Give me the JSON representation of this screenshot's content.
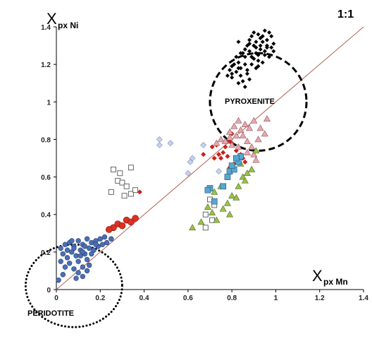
{
  "chart_data": {
    "type": "scatter",
    "x_label_main": "X",
    "x_label_sub": "px Mn",
    "y_label_main": "X",
    "y_label_sub": "px Ni",
    "xlim": [
      0,
      1.4
    ],
    "ylim": [
      0,
      1.4
    ],
    "x_ticks": [
      "0",
      "0.2",
      "0.4",
      "0.6",
      "0.8",
      "1",
      "1.2",
      "1.4"
    ],
    "y_ticks": [
      "0",
      "0.2",
      "0.4",
      "0.6",
      "0.8",
      "1",
      "1.2",
      "1.4"
    ],
    "reference_line_label": "1:1",
    "reference_line": [
      [
        0,
        0
      ],
      [
        1.4,
        1.4
      ]
    ],
    "grid": false,
    "annotations": [
      {
        "text": "PYROXENITE",
        "ellipse": {
          "cx": 0.92,
          "cy": 1.0,
          "rx": 0.22,
          "ry": 0.26,
          "style": "dashed"
        },
        "label_at": [
          0.9,
          1.0
        ]
      },
      {
        "text": "PERIDOTITE",
        "ellipse": {
          "cx": 0.08,
          "cy": 0.02,
          "rx": 0.22,
          "ry": 0.22,
          "style": "dotted"
        },
        "label_at": [
          0.12,
          -0.11
        ]
      }
    ],
    "colors": {
      "pyroxenite": "#000000",
      "peridotite_fill": "#4a6fb5",
      "red_circle": "#e03020",
      "red_diamond": "#c8201e",
      "light_blue_diamond": "#c6d3ee",
      "open_square_edge": "#555555",
      "pink_triangle": "#e9a7ad",
      "green_triangle": "#9bc04a",
      "cyan_square": "#56a8cf",
      "ref_line": "#b06050"
    },
    "series": [
      {
        "marker": "small-black-diamond",
        "points": [
          [
            0.83,
            1.32
          ],
          [
            0.86,
            1.28
          ],
          [
            0.88,
            1.33
          ],
          [
            0.9,
            1.3
          ],
          [
            0.92,
            1.36
          ],
          [
            0.94,
            1.32
          ],
          [
            0.96,
            1.29
          ],
          [
            0.98,
            1.35
          ],
          [
            0.99,
            1.31
          ],
          [
            0.95,
            1.25
          ],
          [
            0.92,
            1.22
          ],
          [
            0.89,
            1.2
          ],
          [
            0.86,
            1.24
          ],
          [
            0.84,
            1.18
          ],
          [
            0.82,
            1.16
          ],
          [
            0.8,
            1.13
          ],
          [
            0.78,
            1.14
          ],
          [
            0.8,
            1.19
          ],
          [
            0.83,
            1.21
          ],
          [
            0.87,
            1.15
          ],
          [
            0.85,
            1.11
          ],
          [
            0.83,
            1.1
          ],
          [
            0.88,
            1.27
          ],
          [
            0.91,
            1.26
          ],
          [
            0.93,
            1.28
          ],
          [
            0.97,
            1.37
          ],
          [
            0.95,
            1.38
          ],
          [
            0.93,
            1.34
          ],
          [
            0.9,
            1.37
          ],
          [
            0.96,
            1.33
          ],
          [
            0.99,
            1.27
          ],
          [
            0.97,
            1.24
          ],
          [
            0.94,
            1.21
          ],
          [
            0.91,
            1.18
          ],
          [
            0.88,
            1.12
          ],
          [
            0.86,
            1.08
          ],
          [
            0.82,
            1.24
          ],
          [
            0.84,
            1.26
          ],
          [
            0.87,
            1.3
          ],
          [
            0.89,
            1.35
          ],
          [
            0.91,
            1.32
          ],
          [
            0.93,
            1.3
          ],
          [
            0.95,
            1.27
          ],
          [
            0.98,
            1.29
          ],
          [
            0.92,
            1.19
          ],
          [
            0.9,
            1.23
          ],
          [
            0.86,
            1.2
          ],
          [
            0.81,
            1.2
          ],
          [
            0.79,
            1.17
          ],
          [
            0.84,
            1.14
          ],
          [
            0.87,
            1.17
          ],
          [
            0.89,
            1.24
          ],
          [
            0.92,
            1.25
          ],
          [
            0.94,
            1.35
          ],
          [
            0.96,
            1.3
          ],
          [
            0.91,
            1.29
          ],
          [
            0.88,
            1.31
          ],
          [
            0.85,
            1.26
          ],
          [
            0.83,
            1.18
          ],
          [
            0.8,
            1.15
          ]
        ]
      },
      {
        "marker": "blue-circle",
        "points": [
          [
            0.02,
            0.22
          ],
          [
            0.04,
            0.24
          ],
          [
            0.06,
            0.25
          ],
          [
            0.08,
            0.23
          ],
          [
            0.1,
            0.26
          ],
          [
            0.12,
            0.24
          ],
          [
            0.14,
            0.27
          ],
          [
            0.16,
            0.25
          ],
          [
            0.18,
            0.26
          ],
          [
            0.2,
            0.27
          ],
          [
            0.22,
            0.28
          ],
          [
            0.15,
            0.22
          ],
          [
            0.11,
            0.21
          ],
          [
            0.07,
            0.2
          ],
          [
            0.03,
            0.19
          ],
          [
            0.05,
            0.17
          ],
          [
            0.09,
            0.18
          ],
          [
            0.13,
            0.19
          ],
          [
            0.17,
            0.21
          ],
          [
            0.19,
            0.23
          ],
          [
            0.23,
            0.25
          ],
          [
            0.25,
            0.27
          ],
          [
            0.08,
            0.22
          ],
          [
            0.12,
            0.2
          ],
          [
            0.14,
            0.16
          ],
          [
            0.1,
            0.15
          ],
          [
            0.06,
            0.14
          ],
          [
            0.04,
            0.12
          ],
          [
            0.08,
            0.11
          ],
          [
            0.12,
            0.12
          ],
          [
            0.1,
            0.09
          ],
          [
            0.14,
            0.1
          ],
          [
            0.09,
            0.06
          ],
          [
            0.12,
            0.07
          ],
          [
            0.15,
            0.13
          ],
          [
            0.02,
            0.15
          ],
          [
            0.05,
            0.21
          ],
          [
            0.13,
            0.23
          ],
          [
            0.16,
            0.19
          ],
          [
            0.18,
            0.24
          ],
          [
            0.21,
            0.24
          ],
          [
            0.07,
            0.26
          ],
          [
            0.03,
            0.08
          ],
          [
            0.11,
            0.18
          ],
          [
            0.01,
            0.05
          ]
        ]
      },
      {
        "marker": "red-circle",
        "points": [
          [
            0.26,
            0.33
          ],
          [
            0.28,
            0.35
          ],
          [
            0.3,
            0.34
          ],
          [
            0.32,
            0.37
          ],
          [
            0.34,
            0.36
          ],
          [
            0.36,
            0.38
          ],
          [
            0.24,
            0.32
          ]
        ]
      },
      {
        "marker": "light-blue-diamond",
        "points": [
          [
            0.47,
            0.8
          ],
          [
            0.52,
            0.78
          ],
          [
            0.47,
            0.77
          ],
          [
            0.67,
            0.77
          ],
          [
            0.62,
            0.7
          ],
          [
            0.61,
            0.68
          ],
          [
            0.74,
            0.63
          ],
          [
            0.6,
            0.62
          ]
        ]
      },
      {
        "marker": "open-square",
        "points": [
          [
            0.26,
            0.64
          ],
          [
            0.29,
            0.62
          ],
          [
            0.34,
            0.65
          ],
          [
            0.28,
            0.58
          ],
          [
            0.3,
            0.57
          ],
          [
            0.32,
            0.55
          ],
          [
            0.25,
            0.52
          ],
          [
            0.34,
            0.51
          ],
          [
            0.31,
            0.5
          ],
          [
            0.36,
            0.53
          ],
          [
            0.7,
            0.48
          ],
          [
            0.72,
            0.45
          ],
          [
            0.68,
            0.4
          ],
          [
            0.71,
            0.37
          ],
          [
            0.68,
            0.33
          ]
        ]
      },
      {
        "marker": "red-diamond",
        "points": [
          [
            0.38,
            0.52
          ],
          [
            0.67,
            0.72
          ],
          [
            0.71,
            0.76
          ],
          [
            0.73,
            0.77
          ],
          [
            0.74,
            0.72
          ],
          [
            0.76,
            0.73
          ],
          [
            0.77,
            0.76
          ],
          [
            0.79,
            0.79
          ],
          [
            0.8,
            0.78
          ],
          [
            0.82,
            0.74
          ],
          [
            0.84,
            0.72
          ],
          [
            0.85,
            0.7
          ],
          [
            0.83,
            0.69
          ],
          [
            0.81,
            0.67
          ],
          [
            0.79,
            0.65
          ],
          [
            0.86,
            0.68
          ],
          [
            0.72,
            0.7
          ],
          [
            0.75,
            0.7
          ],
          [
            0.78,
            0.71
          ],
          [
            0.8,
            0.83
          ]
        ]
      },
      {
        "marker": "pink-triangle",
        "points": [
          [
            0.73,
            0.78
          ],
          [
            0.75,
            0.8
          ],
          [
            0.79,
            0.84
          ],
          [
            0.81,
            0.87
          ],
          [
            0.84,
            0.85
          ],
          [
            0.86,
            0.88
          ],
          [
            0.88,
            0.86
          ],
          [
            0.9,
            0.9
          ],
          [
            0.83,
            0.9
          ],
          [
            0.79,
            0.81
          ],
          [
            0.85,
            0.82
          ],
          [
            0.87,
            0.79
          ],
          [
            0.89,
            0.76
          ],
          [
            0.9,
            0.72
          ],
          [
            0.91,
            0.69
          ],
          [
            0.93,
            0.86
          ],
          [
            0.95,
            0.83
          ],
          [
            0.96,
            0.91
          ],
          [
            0.82,
            0.82
          ],
          [
            0.77,
            0.79
          ],
          [
            0.8,
            0.77
          ],
          [
            0.83,
            0.76
          ],
          [
            0.87,
            0.73
          ],
          [
            0.92,
            0.8
          ]
        ]
      },
      {
        "marker": "green-triangle",
        "points": [
          [
            0.62,
            0.33
          ],
          [
            0.66,
            0.36
          ],
          [
            0.69,
            0.44
          ],
          [
            0.71,
            0.41
          ],
          [
            0.73,
            0.37
          ],
          [
            0.76,
            0.43
          ],
          [
            0.78,
            0.46
          ],
          [
            0.8,
            0.5
          ],
          [
            0.83,
            0.55
          ],
          [
            0.85,
            0.6
          ],
          [
            0.87,
            0.62
          ],
          [
            0.89,
            0.64
          ],
          [
            0.91,
            0.74
          ],
          [
            0.86,
            0.58
          ],
          [
            0.82,
            0.49
          ],
          [
            0.79,
            0.4
          ],
          [
            0.75,
            0.55
          ],
          [
            0.84,
            0.67
          ],
          [
            0.72,
            0.52
          ]
        ]
      },
      {
        "marker": "cyan-square",
        "points": [
          [
            0.7,
            0.54
          ],
          [
            0.69,
            0.53
          ],
          [
            0.72,
            0.47
          ],
          [
            0.76,
            0.55
          ],
          [
            0.78,
            0.6
          ],
          [
            0.79,
            0.63
          ],
          [
            0.81,
            0.64
          ],
          [
            0.83,
            0.68
          ],
          [
            0.84,
            0.71
          ],
          [
            0.82,
            0.7
          ],
          [
            0.8,
            0.66
          ]
        ]
      }
    ]
  }
}
